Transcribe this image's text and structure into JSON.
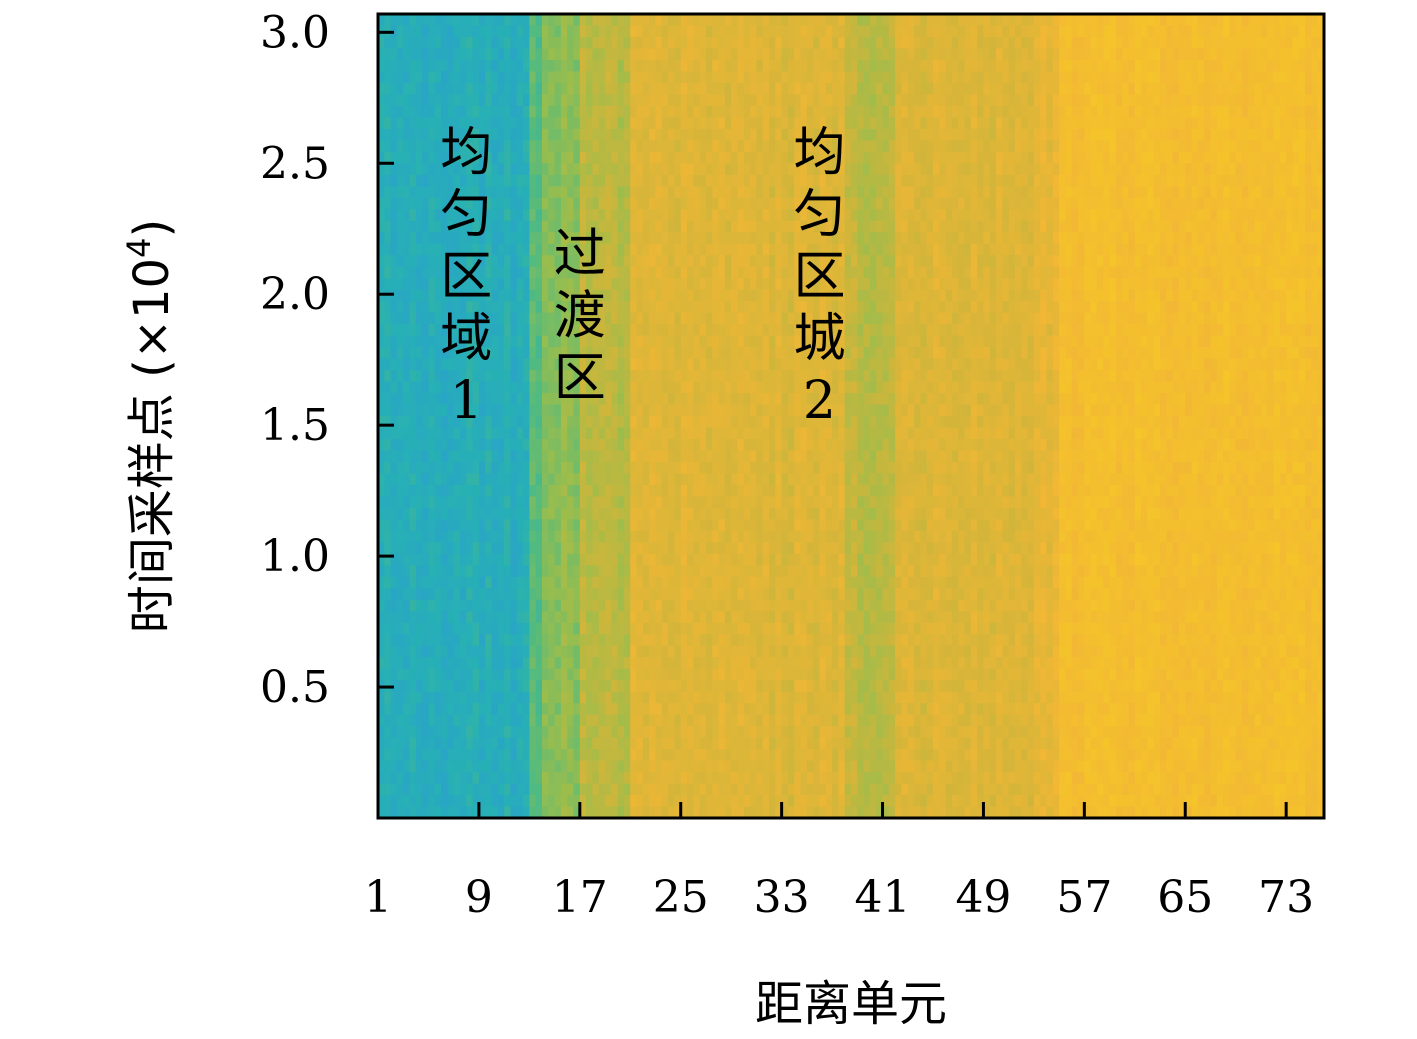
{
  "chart_data": {
    "type": "heatmap",
    "title": "",
    "xlabel": "距离单元",
    "ylabel": "时间采样点 (×10",
    "ylabel_sup": "4",
    "ylabel_close": ")",
    "x_range": [
      1,
      76
    ],
    "y_range": [
      0,
      3.07
    ],
    "x_ticks": [
      1,
      9,
      17,
      25,
      33,
      41,
      49,
      57,
      65,
      73
    ],
    "x_tick_labels": [
      "1",
      "9",
      "17",
      "25",
      "33",
      "41",
      "49",
      "57",
      "65",
      "73"
    ],
    "y_ticks": [
      0.5,
      1.0,
      1.5,
      2.0,
      2.5,
      3.0
    ],
    "y_tick_labels": [
      "0.5",
      "1.0",
      "1.5",
      "2.0",
      "2.5",
      "3.0"
    ],
    "colormap": [
      "#2b9fcf",
      "#27b0b5",
      "#56bb7c",
      "#9bbd4c",
      "#d2b53a",
      "#f2b735",
      "#f5c529",
      "#f7d81e"
    ],
    "column_levels": [
      {
        "from": 1,
        "to": 13,
        "level": 0.12
      },
      {
        "from": 13,
        "to": 14,
        "level": 0.28
      },
      {
        "from": 14,
        "to": 17,
        "level": 0.4
      },
      {
        "from": 17,
        "to": 21,
        "level": 0.5
      },
      {
        "from": 21,
        "to": 38,
        "level": 0.62
      },
      {
        "from": 38,
        "to": 42,
        "level": 0.52
      },
      {
        "from": 42,
        "to": 53,
        "level": 0.62
      },
      {
        "from": 53,
        "to": 55,
        "level": 0.66
      },
      {
        "from": 55,
        "to": 76,
        "level": 0.78
      }
    ],
    "annotations": [
      {
        "lines": [
          "均",
          "匀",
          "区",
          "域",
          "1"
        ],
        "x": 8.0,
        "y": 2.0
      },
      {
        "lines": [
          "过",
          "渡",
          "区"
        ],
        "x": 17.0,
        "y": 1.85
      },
      {
        "lines": [
          "均",
          "匀",
          "区",
          "城",
          "2"
        ],
        "x": 36.0,
        "y": 2.0
      }
    ]
  }
}
